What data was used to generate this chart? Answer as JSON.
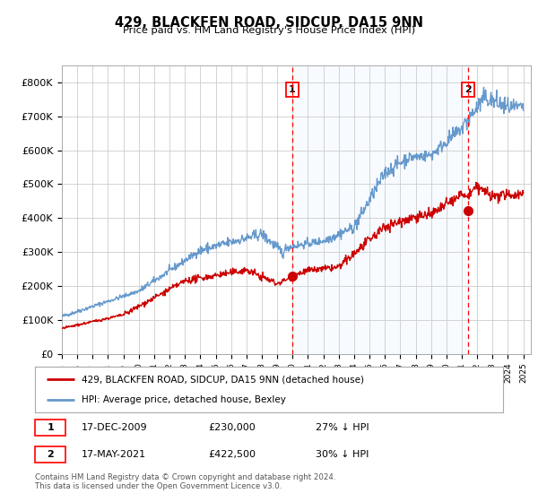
{
  "title": "429, BLACKFEN ROAD, SIDCUP, DA15 9NN",
  "subtitle": "Price paid vs. HM Land Registry's House Price Index (HPI)",
  "background_color": "#ffffff",
  "grid_color": "#cccccc",
  "hpi_line_color": "#6699cc",
  "price_line_color": "#cc0000",
  "shade_color": "#ddeeff",
  "ylim": [
    0,
    850000
  ],
  "yticks": [
    0,
    100000,
    200000,
    300000,
    400000,
    500000,
    600000,
    700000,
    800000
  ],
  "ytick_labels": [
    "£0",
    "£100K",
    "£200K",
    "£300K",
    "£400K",
    "£500K",
    "£600K",
    "£700K",
    "£800K"
  ],
  "sale1_year": 2009.96,
  "sale1_price": 230000,
  "sale2_year": 2021.38,
  "sale2_price": 422500,
  "sale1_date": "17-DEC-2009",
  "sale1_amount": "£230,000",
  "sale1_hpi": "27% ↓ HPI",
  "sale2_date": "17-MAY-2021",
  "sale2_amount": "£422,500",
  "sale2_hpi": "30% ↓ HPI",
  "legend1": "429, BLACKFEN ROAD, SIDCUP, DA15 9NN (detached house)",
  "legend2": "HPI: Average price, detached house, Bexley",
  "footer": "Contains HM Land Registry data © Crown copyright and database right 2024.\nThis data is licensed under the Open Government Licence v3.0."
}
